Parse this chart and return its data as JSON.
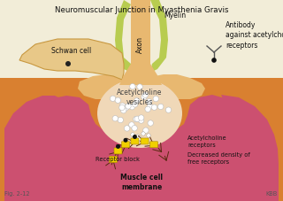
{
  "title": "Neuromuscular Junction in Myasthenia Gravis",
  "bg_color": "#f2edd8",
  "orange_bg": "#d98030",
  "pink_main": "#cc5070",
  "pink_light": "#e8909a",
  "nerve_color": "#e8b870",
  "myelin_color": "#b8cc50",
  "axon_color": "#c89840",
  "vesicle_area_color": "#f0d8b8",
  "schwann_color": "#e8c888",
  "yellow_receptor": "#f0d000",
  "fig_label": "Fig. 2-12",
  "watermark": "KBB",
  "label_schwann": "Schwan cell",
  "label_myelin": "Myelin",
  "label_axon": "Axon",
  "label_antibody": "Antibody\nagainst acetylcholine\nreceptors",
  "label_vesicles": "Acetylcholine\nvesicles",
  "label_receptor_block": "Receptor block",
  "label_muscle": "Muscle cell\nmembrane",
  "label_ach_receptors": "Acetylcholine\nreceptors",
  "label_decreased": "Decreased density of\nfree receptors"
}
